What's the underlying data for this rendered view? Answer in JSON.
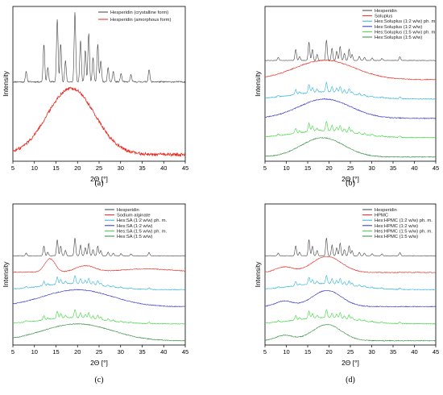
{
  "chart_data": [
    {
      "panel_label": "(a)",
      "type": "line",
      "xlabel": "2Θ [°]",
      "ylabel": "Intensity",
      "xlim": [
        5,
        45
      ],
      "x_ticks": [
        5,
        10,
        15,
        20,
        25,
        30,
        35,
        40,
        45
      ],
      "y_ticks": "none",
      "grid": false,
      "legend_position": "top-right",
      "series": [
        {
          "name": "Hesperidin (crystalline form)",
          "color": "#404040",
          "kind": "crystalline",
          "peaks": [
            [
              8.1,
              0.15
            ],
            [
              12.2,
              0.55
            ],
            [
              13.1,
              0.2
            ],
            [
              15.3,
              0.9
            ],
            [
              16.1,
              0.55
            ],
            [
              17.2,
              0.3
            ],
            [
              19.4,
              1.0
            ],
            [
              20.7,
              0.6
            ],
            [
              21.8,
              0.45
            ],
            [
              22.6,
              0.7
            ],
            [
              23.6,
              0.35
            ],
            [
              24.7,
              0.55
            ],
            [
              25.4,
              0.3
            ],
            [
              27.1,
              0.2
            ],
            [
              28.3,
              0.15
            ],
            [
              30.1,
              0.12
            ],
            [
              32.4,
              0.1
            ],
            [
              36.6,
              0.18
            ]
          ]
        },
        {
          "name": "Hesperidin (amorphous form)",
          "color": "#e8281e",
          "kind": "amorphous",
          "center": 18.5,
          "width": 5.5
        }
      ]
    },
    {
      "panel_label": "(b)",
      "type": "line",
      "xlabel": "2Θ [°]",
      "ylabel": "Intensity",
      "xlim": [
        5,
        45
      ],
      "x_ticks": [
        5,
        10,
        15,
        20,
        25,
        30,
        35,
        40,
        45
      ],
      "y_ticks": "none",
      "grid": false,
      "legend_position": "top-left",
      "series": [
        {
          "name": "Hesperidin",
          "color": "#404040",
          "kind": "crystalline"
        },
        {
          "name": "Soluplus",
          "color": "#e8281e",
          "kind": "amorphous",
          "center": 19,
          "width": 7
        },
        {
          "name": "Hes:Soluplus (1:2 w/w) ph. m.",
          "color": "#2bb3d9",
          "kind": "mix"
        },
        {
          "name": "Hes:Soluplus (1:2 w/w)",
          "color": "#2f2fc8",
          "kind": "amorphous",
          "center": 19,
          "width": 6
        },
        {
          "name": "Hes:Soluplus (1:5 w/w) ph. m.",
          "color": "#3cd63c",
          "kind": "mix"
        },
        {
          "name": "Hes:Soluplus (1:5 w/w)",
          "color": "#2e8b3c",
          "kind": "amorphous",
          "center": 18.5,
          "width": 5
        }
      ]
    },
    {
      "panel_label": "(c)",
      "type": "line",
      "xlabel": "2Θ [°]",
      "ylabel": "Intensity",
      "xlim": [
        5,
        45
      ],
      "x_ticks": [
        5,
        10,
        15,
        20,
        25,
        30,
        35,
        40,
        45
      ],
      "y_ticks": "none",
      "grid": false,
      "legend_position": "top-right",
      "series": [
        {
          "name": "Hesperidin",
          "color": "#404040",
          "kind": "crystalline"
        },
        {
          "name": "Sodium alginate",
          "color": "#e8281e",
          "kind": "sa"
        },
        {
          "name": "Hes:SA (1:2 w/w) ph. m.",
          "color": "#2bb3d9",
          "kind": "mix"
        },
        {
          "name": "Hes:SA (1:2 w/w)",
          "color": "#2f2fc8",
          "kind": "amorphous",
          "center": 20,
          "width": 8
        },
        {
          "name": "Hes:SA (1:5 w/w) ph. m.",
          "color": "#3cd63c",
          "kind": "mix"
        },
        {
          "name": "Hes:SA (1:5 w/w)",
          "color": "#2e8b3c",
          "kind": "amorphous",
          "center": 20,
          "width": 8
        }
      ]
    },
    {
      "panel_label": "(d)",
      "type": "line",
      "xlabel": "2Θ [°]",
      "ylabel": "Intensity",
      "xlim": [
        5,
        45
      ],
      "x_ticks": [
        5,
        10,
        15,
        20,
        25,
        30,
        35,
        40,
        45
      ],
      "y_ticks": "none",
      "grid": false,
      "legend_position": "top-left",
      "series": [
        {
          "name": "Hesperidin",
          "color": "#404040",
          "kind": "crystalline"
        },
        {
          "name": "HPMC",
          "color": "#e8281e",
          "kind": "hpmc"
        },
        {
          "name": "Hes:HPMC (1:2 w/w) ph. m.",
          "color": "#2bb3d9",
          "kind": "mix"
        },
        {
          "name": "Hes:HPMC (1:2 w/w)",
          "color": "#2f2fc8",
          "kind": "hpmc"
        },
        {
          "name": "Hes:HPMC (1:5 w/w) ph. m.",
          "color": "#3cd63c",
          "kind": "mix"
        },
        {
          "name": "Hes:HPMC (1:5 w/w)",
          "color": "#2e8b3c",
          "kind": "hpmc"
        }
      ]
    }
  ]
}
